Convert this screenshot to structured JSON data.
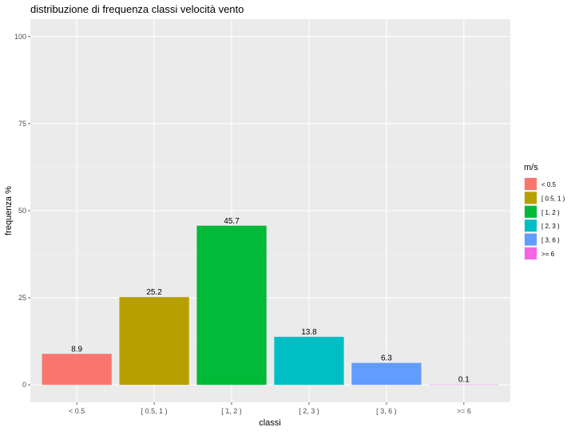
{
  "chart_data": {
    "type": "bar",
    "title": "distribuzione di frequenza classi velocità vento",
    "xlabel": "classi",
    "ylabel": "frequenza %",
    "categories": [
      "< 0.5",
      "[ 0.5, 1 )",
      "[ 1, 2 )",
      "[ 2, 3 )",
      "[ 3, 6 )",
      ">= 6"
    ],
    "values": [
      8.9,
      25.2,
      45.7,
      13.8,
      6.3,
      0.1
    ],
    "data_labels": [
      "8.9",
      "25.2",
      "45.7",
      "13.8",
      "6.3",
      "0.1"
    ],
    "colors": [
      "#F8766D",
      "#B79F00",
      "#00BA38",
      "#00BFC4",
      "#619CFF",
      "#F564E3"
    ],
    "ylim": [
      -5,
      105
    ],
    "yticks": [
      0,
      25,
      50,
      75,
      100
    ],
    "grid": true,
    "legend": {
      "title": "m/s",
      "position": "right",
      "entries": [
        "< 0.5",
        "[ 0.5, 1 )",
        "[ 1, 2 )",
        "[ 2, 3 )",
        "[ 3, 6 )",
        ">= 6"
      ]
    }
  }
}
